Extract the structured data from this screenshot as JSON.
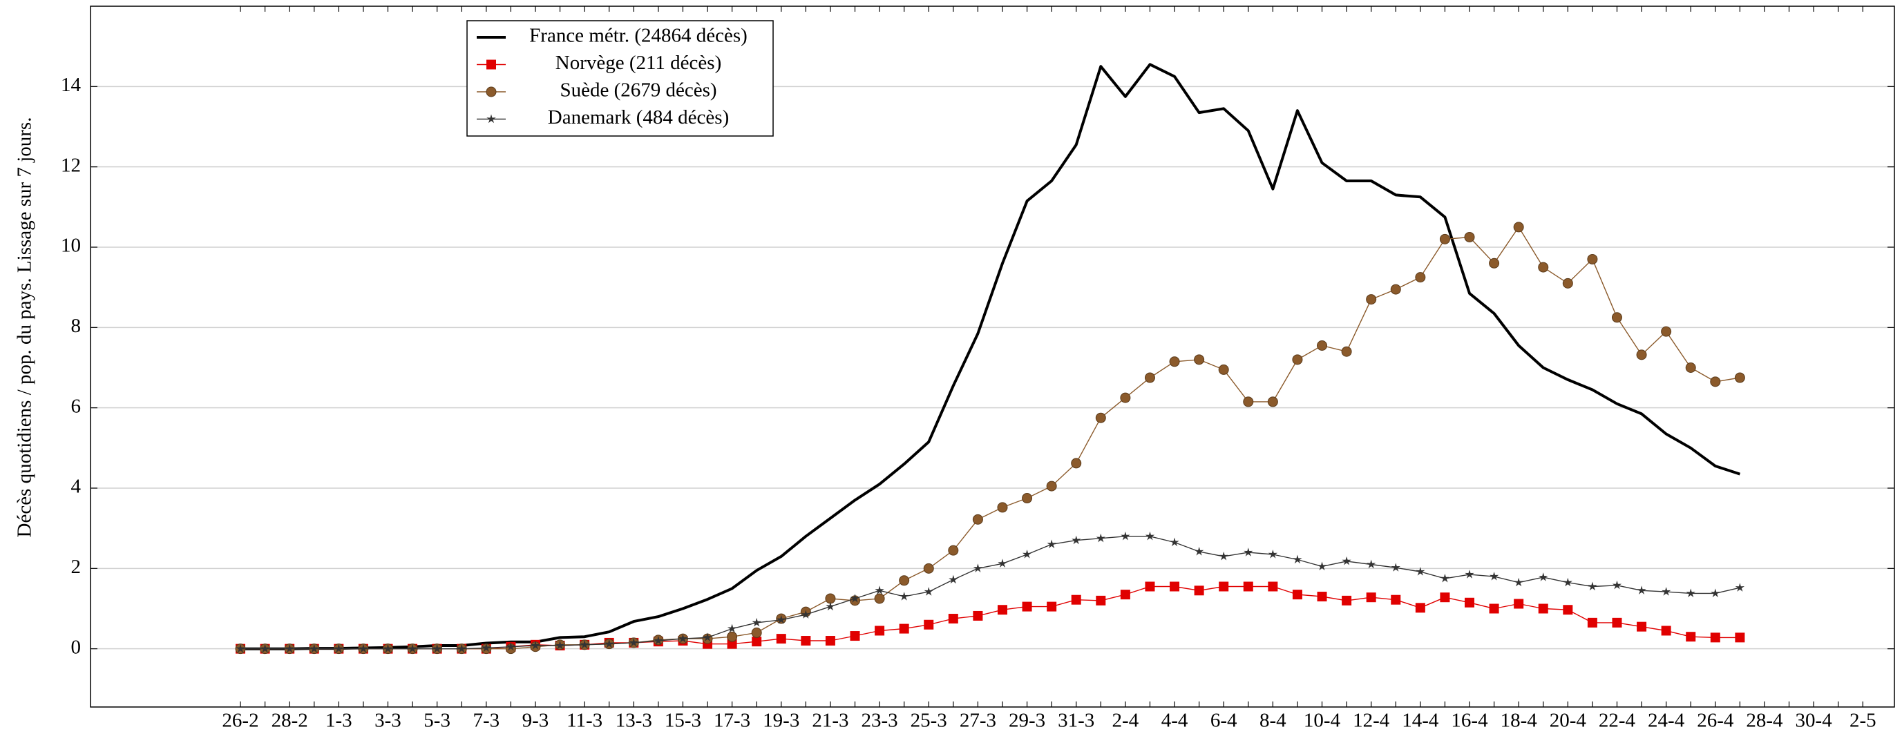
{
  "chart_data": {
    "type": "line",
    "y_label": "Décès quotidiens / pop. du pays. Lissage sur 7 jours.",
    "categories": [
      "26-2",
      null,
      "28-2",
      null,
      "1-3",
      null,
      "3-3",
      null,
      "5-3",
      null,
      "7-3",
      null,
      "9-3",
      null,
      "11-3",
      null,
      "13-3",
      null,
      "15-3",
      null,
      "17-3",
      null,
      "19-3",
      null,
      "21-3",
      null,
      "23-3",
      null,
      "25-3",
      null,
      "27-3",
      null,
      "29-3",
      null,
      "31-3",
      null,
      "2-4",
      null,
      "4-4",
      null,
      "6-4",
      null,
      "8-4",
      null,
      "10-4",
      null,
      "12-4",
      null,
      "14-4",
      null,
      "16-4",
      null,
      "18-4",
      null,
      "20-4",
      null,
      "22-4",
      null,
      "24-4",
      null,
      "26-4",
      null,
      "28-4",
      null,
      "30-4",
      null,
      "2-5"
    ],
    "ylim": [
      -1.45,
      16
    ],
    "yticks": [
      0,
      2,
      4,
      6,
      8,
      10,
      12,
      14
    ],
    "grid": true,
    "legend": "top-left",
    "series": [
      {
        "name": "France métr. (24864 décès)",
        "color": "#000000",
        "marker": "none",
        "values": [
          0,
          0,
          0,
          0.01,
          0.01,
          0.02,
          0.03,
          0.05,
          0.08,
          0.08,
          0.14,
          0.17,
          0.17,
          0.28,
          0.3,
          0.42,
          0.68,
          0.8,
          1.0,
          1.23,
          1.5,
          1.95,
          2.3,
          2.8,
          3.25,
          3.7,
          4.1,
          4.6,
          5.15,
          6.55,
          7.85,
          9.6,
          11.15,
          11.65,
          12.55,
          14.5,
          13.75,
          14.55,
          14.25,
          13.35,
          13.45,
          12.9,
          11.45,
          13.4,
          12.1,
          11.65,
          11.65,
          11.3,
          11.25,
          10.75,
          8.85,
          8.35,
          7.55,
          7.0,
          6.7,
          6.45,
          6.1,
          5.85,
          5.35,
          5.0,
          4.55,
          4.35,
          null,
          null,
          null,
          null,
          null
        ]
      },
      {
        "name": "Norvège (211 décès)",
        "color": "#e00000",
        "marker": "square",
        "values": [
          0,
          0,
          0,
          0,
          0,
          0,
          0,
          0,
          0,
          0,
          0,
          0.05,
          0.1,
          0.08,
          0.1,
          0.15,
          0.15,
          0.18,
          0.2,
          0.12,
          0.12,
          0.18,
          0.25,
          0.2,
          0.2,
          0.32,
          0.45,
          0.5,
          0.6,
          0.75,
          0.82,
          0.97,
          1.05,
          1.05,
          1.22,
          1.2,
          1.35,
          1.55,
          1.55,
          1.45,
          1.55,
          1.55,
          1.55,
          1.35,
          1.3,
          1.2,
          1.28,
          1.22,
          1.02,
          1.28,
          1.15,
          1.0,
          1.12,
          1.0,
          0.97,
          0.65,
          0.65,
          0.55,
          0.45,
          0.3,
          0.28,
          0.28,
          null,
          null,
          null,
          null,
          null
        ]
      },
      {
        "name": "Suède (2679 décès)",
        "color": "#8b5a2b",
        "marker": "circle",
        "values": [
          0,
          0,
          0,
          0,
          0,
          0,
          0,
          0,
          0,
          0,
          0,
          0,
          0.05,
          0.1,
          0.1,
          0.12,
          0.15,
          0.22,
          0.25,
          0.25,
          0.3,
          0.4,
          0.75,
          0.92,
          1.25,
          1.2,
          1.25,
          1.7,
          2.0,
          2.45,
          3.22,
          3.52,
          3.75,
          4.05,
          4.62,
          5.75,
          6.25,
          6.75,
          7.15,
          7.2,
          6.95,
          6.15,
          6.15,
          7.2,
          7.55,
          7.4,
          8.7,
          8.95,
          9.25,
          10.2,
          10.25,
          9.6,
          10.5,
          9.5,
          9.1,
          9.7,
          8.25,
          7.32,
          7.9,
          7.0,
          6.65,
          6.75,
          null,
          null,
          null,
          null,
          null
        ]
      },
      {
        "name": "Danemark (484 décès)",
        "color": "#333333",
        "marker": "star",
        "values": [
          0,
          0,
          0,
          0,
          0,
          0,
          0,
          0,
          0,
          0,
          0.02,
          0.05,
          0.08,
          0.08,
          0.1,
          0.12,
          0.15,
          0.2,
          0.25,
          0.28,
          0.5,
          0.65,
          0.72,
          0.85,
          1.05,
          1.25,
          1.45,
          1.3,
          1.42,
          1.72,
          2.0,
          2.12,
          2.35,
          2.6,
          2.7,
          2.75,
          2.8,
          2.8,
          2.65,
          2.42,
          2.3,
          2.4,
          2.35,
          2.22,
          2.05,
          2.18,
          2.1,
          2.02,
          1.92,
          1.75,
          1.85,
          1.8,
          1.65,
          1.78,
          1.65,
          1.55,
          1.58,
          1.45,
          1.42,
          1.38,
          1.38,
          1.52,
          null,
          null,
          null,
          null,
          null
        ]
      }
    ]
  }
}
